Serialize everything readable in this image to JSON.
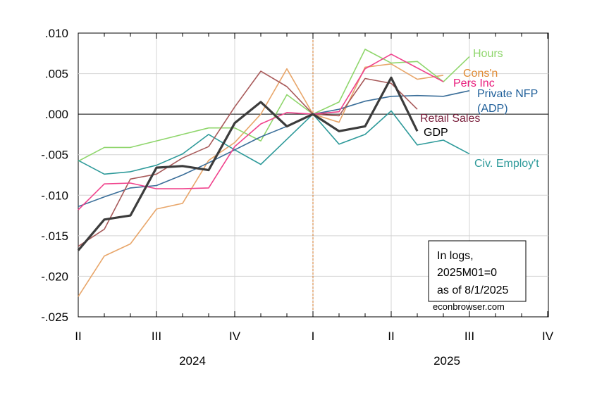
{
  "chart_data": {
    "type": "line",
    "title": "",
    "xlabel": "",
    "ylabel": "",
    "ylim": [
      -0.025,
      0.01
    ],
    "yticks": [
      ".010",
      ".005",
      ".000",
      "-.005",
      "-.010",
      "-.015",
      "-.020",
      "-.025"
    ],
    "x_months": [
      "2024M04",
      "2024M05",
      "2024M06",
      "2024M07",
      "2024M08",
      "2024M09",
      "2024M10",
      "2024M11",
      "2024M12",
      "2025M01",
      "2025M02",
      "2025M03",
      "2025M04",
      "2025M05",
      "2025M06",
      "2025M07",
      "2025M08",
      "2025M09",
      "2025M10"
    ],
    "x_quarter_labels": [
      "II",
      "III",
      "IV",
      "I",
      "II",
      "III",
      "IV"
    ],
    "x_year_labels": [
      "2024",
      "2025"
    ],
    "reference_line": "2025M01",
    "series": [
      {
        "name": "Hours",
        "color": "#8fd66c",
        "width": 1.6,
        "points": [
          [
            "2024M04",
            -0.0058
          ],
          [
            "2024M05",
            -0.0041
          ],
          [
            "2024M06",
            -0.0041
          ],
          [
            "2024M08",
            -0.0025
          ],
          [
            "2024M09",
            -0.0017
          ],
          [
            "2024M10",
            -0.0017
          ],
          [
            "2024M11",
            -0.0033
          ],
          [
            "2024M12",
            0.0024
          ],
          [
            "2025M01",
            0.0
          ],
          [
            "2025M02",
            0.0015
          ],
          [
            "2025M03",
            0.008
          ],
          [
            "2025M04",
            0.0063
          ],
          [
            "2025M05",
            0.0065
          ],
          [
            "2025M06",
            0.004
          ],
          [
            "2025M07",
            0.0071
          ]
        ]
      },
      {
        "name": "Cons'n",
        "color": "#e8a66a",
        "width": 1.6,
        "points": [
          [
            "2024M04",
            -0.0225
          ],
          [
            "2024M05",
            -0.0175
          ],
          [
            "2024M06",
            -0.016
          ],
          [
            "2024M07",
            -0.0117
          ],
          [
            "2024M08",
            -0.011
          ],
          [
            "2024M09",
            -0.0057
          ],
          [
            "2024M10",
            -0.0035
          ],
          [
            "2024M11",
            0.0
          ],
          [
            "2024M12",
            0.0056
          ],
          [
            "2025M01",
            0.0
          ],
          [
            "2025M02",
            -0.001
          ],
          [
            "2025M03",
            0.0058
          ],
          [
            "2025M04",
            0.0062
          ],
          [
            "2025M05",
            0.0043
          ],
          [
            "2025M06",
            0.0048
          ]
        ]
      },
      {
        "name": "Pers Inc",
        "color": "#f0428c",
        "width": 1.6,
        "points": [
          [
            "2024M04",
            -0.0118
          ],
          [
            "2024M05",
            -0.0086
          ],
          [
            "2024M06",
            -0.0085
          ],
          [
            "2024M07",
            -0.0092
          ],
          [
            "2024M08",
            -0.0092
          ],
          [
            "2024M09",
            -0.0091
          ],
          [
            "2024M10",
            -0.004
          ],
          [
            "2024M11",
            -0.0012
          ],
          [
            "2024M12",
            0.0002
          ],
          [
            "2025M01",
            0.0
          ],
          [
            "2025M02",
            0.0003
          ],
          [
            "2025M03",
            0.0056
          ],
          [
            "2025M04",
            0.0074
          ],
          [
            "2025M05",
            0.0057
          ],
          [
            "2025M06",
            0.004
          ]
        ]
      },
      {
        "name": "Private NFP (ADP)",
        "color": "#3a6e99",
        "width": 1.6,
        "points": [
          [
            "2024M04",
            -0.0114
          ],
          [
            "2024M05",
            -0.0102
          ],
          [
            "2024M06",
            -0.0091
          ],
          [
            "2024M07",
            -0.0088
          ],
          [
            "2024M08",
            -0.0075
          ],
          [
            "2024M09",
            -0.006
          ],
          [
            "2024M10",
            -0.0044
          ],
          [
            "2024M11",
            -0.0028
          ],
          [
            "2024M12",
            -0.0015
          ],
          [
            "2025M01",
            0.0
          ],
          [
            "2025M02",
            0.0006
          ],
          [
            "2025M03",
            0.0016
          ],
          [
            "2025M04",
            0.0022
          ],
          [
            "2025M05",
            0.0023
          ],
          [
            "2025M06",
            0.0022
          ],
          [
            "2025M07",
            0.0029
          ]
        ]
      },
      {
        "name": "Retail Sales",
        "color": "#a85a5a",
        "width": 1.6,
        "points": [
          [
            "2024M04",
            -0.0163
          ],
          [
            "2024M05",
            -0.0142
          ],
          [
            "2024M06",
            -0.008
          ],
          [
            "2024M07",
            -0.0074
          ],
          [
            "2024M08",
            -0.0054
          ],
          [
            "2024M09",
            -0.004
          ],
          [
            "2024M10",
            0.0009
          ],
          [
            "2024M11",
            0.0053
          ],
          [
            "2024M12",
            0.0034
          ],
          [
            "2025M01",
            0.0
          ],
          [
            "2025M02",
            -0.0002
          ],
          [
            "2025M03",
            0.0044
          ],
          [
            "2025M04",
            0.0038
          ],
          [
            "2025M05",
            0.0006
          ]
        ]
      },
      {
        "name": "Civ. Employ't",
        "color": "#2e9a9a",
        "width": 1.6,
        "points": [
          [
            "2024M04",
            -0.0057
          ],
          [
            "2024M05",
            -0.0074
          ],
          [
            "2024M06",
            -0.0071
          ],
          [
            "2024M07",
            -0.0063
          ],
          [
            "2024M08",
            -0.0049
          ],
          [
            "2024M09",
            -0.0025
          ],
          [
            "2024M10",
            -0.0044
          ],
          [
            "2024M11",
            -0.0062
          ],
          [
            "2024M12",
            -0.0031
          ],
          [
            "2025M01",
            0.0
          ],
          [
            "2025M02",
            -0.0037
          ],
          [
            "2025M03",
            -0.0025
          ],
          [
            "2025M04",
            0.0004
          ],
          [
            "2025M05",
            -0.0038
          ],
          [
            "2025M06",
            -0.0032
          ],
          [
            "2025M07",
            -0.0049
          ]
        ]
      },
      {
        "name": "GDP",
        "color": "#3c3c3c",
        "width": 3.2,
        "points": [
          [
            "2024M04",
            -0.0168
          ],
          [
            "2024M05",
            -0.013
          ],
          [
            "2024M06",
            -0.0125
          ],
          [
            "2024M07",
            -0.0066
          ],
          [
            "2024M08",
            -0.0064
          ],
          [
            "2024M09",
            -0.0069
          ],
          [
            "2024M10",
            -0.0011
          ],
          [
            "2024M11",
            0.0015
          ],
          [
            "2024M12",
            -0.0015
          ],
          [
            "2025M01",
            0.0
          ],
          [
            "2025M02",
            -0.0021
          ],
          [
            "2025M03",
            -0.0015
          ],
          [
            "2025M04",
            0.0045
          ],
          [
            "2025M05",
            -0.0021
          ]
        ]
      }
    ],
    "labels": [
      {
        "text": "Hours",
        "series": "Hours",
        "color": "#8fd66c"
      },
      {
        "text": "Cons'n",
        "series": "Cons'n",
        "color": "#e08a32"
      },
      {
        "text": "Pers Inc",
        "series": "Pers Inc",
        "color": "#e8197a"
      },
      {
        "text": "Private NFP",
        "series": "Private NFP (ADP)",
        "color": "#1f5f99"
      },
      {
        "text": "(ADP)",
        "series": "Private NFP (ADP)",
        "color": "#1f5f99"
      },
      {
        "text": "Retail Sales",
        "series": "Retail Sales",
        "color": "#7a1f3c"
      },
      {
        "text": "GDP",
        "series": "GDP",
        "color": "#000000"
      },
      {
        "text": "Civ. Employ't",
        "series": "Civ. Employ't",
        "color": "#2e9a9a"
      }
    ],
    "note": [
      "In logs,",
      "2025M01=0",
      "as of 8/1/2025"
    ],
    "credit": "econbrowser.com",
    "grid": true
  }
}
